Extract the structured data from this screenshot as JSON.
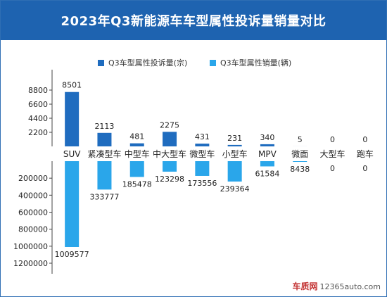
{
  "title": "2023年Q3新能源车车型属性投诉量销量对比",
  "watermark": {
    "brand": "车质网",
    "site": "12365auto.com"
  },
  "colors": {
    "complaints": "#1f6cbf",
    "sales": "#2aa6ea",
    "title_bg": "#1e63b0",
    "axis": "#444444"
  },
  "chart_data": {
    "type": "bar",
    "title": "2023年Q3新能源车车型属性投诉量销量对比",
    "categories": [
      "SUV",
      "紧凑型车",
      "中型车",
      "中大型车",
      "微型车",
      "小型车",
      "MPV",
      "微面",
      "大型车",
      "跑车"
    ],
    "series": [
      {
        "name": "Q3车型属性投诉量(宗)",
        "values": [
          8501,
          2113,
          481,
          2275,
          431,
          231,
          340,
          5,
          0,
          0
        ],
        "direction": "up"
      },
      {
        "name": "Q3车型属性销量(辆)",
        "values": [
          1009577,
          333777,
          185478,
          123298,
          173556,
          239364,
          61584,
          8438,
          0,
          0
        ],
        "direction": "down"
      }
    ],
    "upper_axis": {
      "ticks": [
        "8800",
        "6600",
        "4400",
        "2200"
      ],
      "tick_values": [
        8800,
        6600,
        4400,
        2200
      ],
      "max": 8800
    },
    "lower_axis": {
      "ticks": [
        "200000",
        "400000",
        "600000",
        "800000",
        "1000000",
        "1200000"
      ],
      "tick_values": [
        200000,
        400000,
        600000,
        800000,
        1000000,
        1200000
      ],
      "max": 1200000
    },
    "legend_position": "top-center",
    "grid": false
  }
}
